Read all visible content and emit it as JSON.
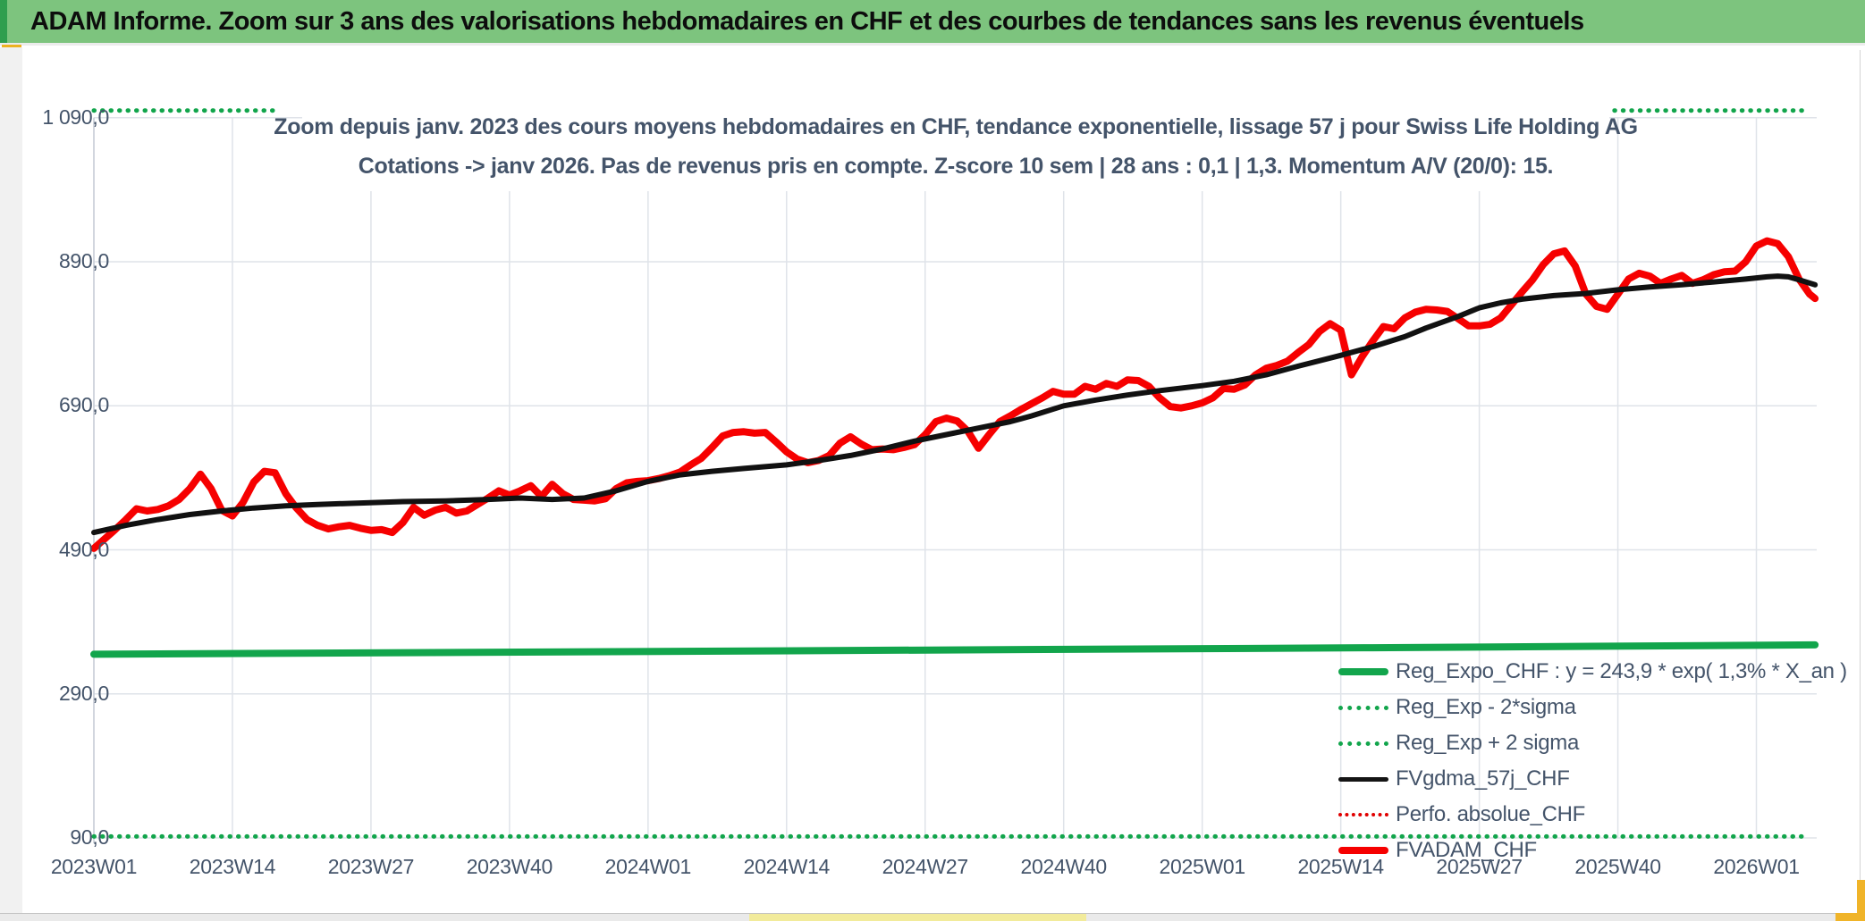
{
  "banner": {
    "title": "ADAM Informe. Zoom sur 3 ans des valorisations hebdomadaires en CHF et des courbes de tendances sans les revenus éventuels",
    "bg_color": "#7dc47e",
    "edge_color": "#2f9e4e",
    "accent_color": "#edb220"
  },
  "chart": {
    "title_line1": "Zoom depuis janv. 2023 des cours moyens hebdomadaires en CHF, tendance exponentielle, lissage 57 j pour Swiss Life Holding AG",
    "title_line2": "Cotations -> janv 2026. Pas de revenus pris en compte. Z-score 10 sem | 28 ans : 0,1 | 1,3. Momentum A/V (20/0): 15.",
    "title_color": "#44546a"
  },
  "chart_data": {
    "type": "line",
    "title": "Zoom depuis janv. 2023 des cours moyens hebdomadaires en CHF, tendance exponentielle, lissage 57 j pour Swiss Life Holding AG Cotations -> janv 2026. Pas de revenus pris en compte. Z-score 10 sem | 28 ans : 0,1 | 1,3. Momentum A/V (20/0): 15.",
    "x_unit": "weeks since 2023W01",
    "x_tick_labels": [
      "2023W01",
      "2023W14",
      "2023W27",
      "2023W40",
      "2024W01",
      "2024W14",
      "2024W27",
      "2024W40",
      "2025W01",
      "2025W14",
      "2025W27",
      "2025W40",
      "2026W01"
    ],
    "x_tick_weeks": [
      0,
      13,
      26,
      39,
      52,
      65,
      78,
      91,
      104,
      117,
      130,
      143,
      156
    ],
    "y_tick_labels": [
      "1 090,0",
      "890,0",
      "690,0",
      "490,0",
      "290,0",
      "90,0"
    ],
    "y_tick_values": [
      1090,
      890,
      690,
      490,
      290,
      90
    ],
    "ylim": [
      90,
      1090
    ],
    "grid": true,
    "gridline_color": "#dfe3e9",
    "series": [
      {
        "name": "FVADAM_CHF",
        "color": "#f60000",
        "style": "solid",
        "width": 8,
        "points": [
          [
            0,
            492
          ],
          [
            1,
            505
          ],
          [
            2,
            518
          ],
          [
            3,
            532
          ],
          [
            4,
            547
          ],
          [
            5,
            544
          ],
          [
            6,
            546
          ],
          [
            7,
            551
          ],
          [
            8,
            560
          ],
          [
            9,
            575
          ],
          [
            10,
            595
          ],
          [
            11,
            575
          ],
          [
            12,
            545
          ],
          [
            13,
            537
          ],
          [
            14,
            556
          ],
          [
            15,
            584
          ],
          [
            16,
            599
          ],
          [
            17,
            597
          ],
          [
            18,
            568
          ],
          [
            19,
            548
          ],
          [
            20,
            532
          ],
          [
            21,
            524
          ],
          [
            22,
            519
          ],
          [
            23,
            522
          ],
          [
            24,
            524
          ],
          [
            25,
            520
          ],
          [
            26,
            517
          ],
          [
            27,
            518
          ],
          [
            28,
            514
          ],
          [
            29,
            528
          ],
          [
            30,
            549
          ],
          [
            31,
            538
          ],
          [
            32,
            545
          ],
          [
            33,
            549
          ],
          [
            34,
            541
          ],
          [
            35,
            544
          ],
          [
            36,
            553
          ],
          [
            37,
            562
          ],
          [
            38,
            572
          ],
          [
            39,
            566
          ],
          [
            40,
            572
          ],
          [
            41,
            579
          ],
          [
            42,
            564
          ],
          [
            43,
            581
          ],
          [
            44,
            568
          ],
          [
            45,
            560
          ],
          [
            46,
            559
          ],
          [
            47,
            558
          ],
          [
            48,
            561
          ],
          [
            49,
            575
          ],
          [
            50,
            583
          ],
          [
            51,
            585
          ],
          [
            52,
            586
          ],
          [
            53,
            589
          ],
          [
            54,
            593
          ],
          [
            55,
            598
          ],
          [
            56,
            608
          ],
          [
            57,
            617
          ],
          [
            58,
            632
          ],
          [
            59,
            648
          ],
          [
            60,
            653
          ],
          [
            61,
            654
          ],
          [
            62,
            652
          ],
          [
            63,
            653
          ],
          [
            64,
            640
          ],
          [
            65,
            626
          ],
          [
            66,
            616
          ],
          [
            67,
            611
          ],
          [
            68,
            614
          ],
          [
            69,
            621
          ],
          [
            70,
            638
          ],
          [
            71,
            647
          ],
          [
            72,
            637
          ],
          [
            73,
            629
          ],
          [
            74,
            630
          ],
          [
            75,
            629
          ],
          [
            76,
            632
          ],
          [
            77,
            636
          ],
          [
            78,
            650
          ],
          [
            79,
            668
          ],
          [
            80,
            673
          ],
          [
            81,
            669
          ],
          [
            82,
            655
          ],
          [
            83,
            631
          ],
          [
            84,
            650
          ],
          [
            85,
            668
          ],
          [
            86,
            676
          ],
          [
            87,
            685
          ],
          [
            88,
            693
          ],
          [
            89,
            701
          ],
          [
            90,
            710
          ],
          [
            91,
            706
          ],
          [
            92,
            706
          ],
          [
            93,
            717
          ],
          [
            94,
            713
          ],
          [
            95,
            721
          ],
          [
            96,
            717
          ],
          [
            97,
            726
          ],
          [
            98,
            725
          ],
          [
            99,
            717
          ],
          [
            100,
            701
          ],
          [
            101,
            689
          ],
          [
            102,
            687
          ],
          [
            103,
            690
          ],
          [
            104,
            694
          ],
          [
            105,
            701
          ],
          [
            106,
            714
          ],
          [
            107,
            713
          ],
          [
            108,
            719
          ],
          [
            109,
            733
          ],
          [
            110,
            742
          ],
          [
            111,
            746
          ],
          [
            112,
            752
          ],
          [
            113,
            764
          ],
          [
            114,
            775
          ],
          [
            115,
            793
          ],
          [
            116,
            804
          ],
          [
            117,
            795
          ],
          [
            118,
            733
          ],
          [
            119,
            758
          ],
          [
            120,
            780
          ],
          [
            121,
            800
          ],
          [
            122,
            797
          ],
          [
            123,
            812
          ],
          [
            124,
            820
          ],
          [
            125,
            824
          ],
          [
            126,
            823
          ],
          [
            127,
            821
          ],
          [
            128,
            811
          ],
          [
            129,
            801
          ],
          [
            130,
            801
          ],
          [
            131,
            803
          ],
          [
            132,
            812
          ],
          [
            133,
            830
          ],
          [
            134,
            848
          ],
          [
            135,
            865
          ],
          [
            136,
            886
          ],
          [
            137,
            901
          ],
          [
            138,
            905
          ],
          [
            139,
            884
          ],
          [
            140,
            845
          ],
          [
            141,
            828
          ],
          [
            142,
            824
          ],
          [
            143,
            845
          ],
          [
            144,
            866
          ],
          [
            145,
            874
          ],
          [
            146,
            870
          ],
          [
            147,
            860
          ],
          [
            148,
            866
          ],
          [
            149,
            871
          ],
          [
            150,
            860
          ],
          [
            151,
            865
          ],
          [
            152,
            872
          ],
          [
            153,
            876
          ],
          [
            154,
            877
          ],
          [
            155,
            890
          ],
          [
            156,
            912
          ],
          [
            157,
            919
          ],
          [
            158,
            915
          ],
          [
            159,
            897
          ],
          [
            160,
            866
          ],
          [
            161,
            845
          ],
          [
            161.5,
            839
          ]
        ]
      },
      {
        "name": "FVgdma_57j_CHF",
        "color": "#111111",
        "style": "solid",
        "width": 6,
        "points": [
          [
            0,
            514
          ],
          [
            3,
            524
          ],
          [
            6,
            532
          ],
          [
            9,
            539
          ],
          [
            12,
            544
          ],
          [
            15,
            548
          ],
          [
            18,
            551
          ],
          [
            21,
            553
          ],
          [
            25,
            555
          ],
          [
            29,
            557
          ],
          [
            33,
            558
          ],
          [
            37,
            560
          ],
          [
            40,
            562
          ],
          [
            43,
            560
          ],
          [
            46,
            562
          ],
          [
            49,
            572
          ],
          [
            52,
            585
          ],
          [
            55,
            594
          ],
          [
            58,
            599
          ],
          [
            61,
            603
          ],
          [
            65,
            608
          ],
          [
            68,
            614
          ],
          [
            71,
            621
          ],
          [
            74,
            630
          ],
          [
            77,
            641
          ],
          [
            80,
            650
          ],
          [
            83,
            659
          ],
          [
            86,
            668
          ],
          [
            88,
            676
          ],
          [
            91,
            690
          ],
          [
            94,
            698
          ],
          [
            97,
            705
          ],
          [
            100,
            711
          ],
          [
            104,
            718
          ],
          [
            107,
            724
          ],
          [
            110,
            733
          ],
          [
            113,
            745
          ],
          [
            117,
            760
          ],
          [
            120,
            772
          ],
          [
            123,
            786
          ],
          [
            125,
            798
          ],
          [
            128,
            814
          ],
          [
            130,
            826
          ],
          [
            132,
            833
          ],
          [
            134,
            838
          ],
          [
            137,
            843
          ],
          [
            140,
            846
          ],
          [
            143,
            851
          ],
          [
            146,
            855
          ],
          [
            149,
            858
          ],
          [
            152,
            862
          ],
          [
            155,
            866
          ],
          [
            157,
            869
          ],
          [
            158,
            870
          ],
          [
            159,
            869
          ],
          [
            160,
            865
          ],
          [
            161.5,
            858
          ]
        ]
      },
      {
        "name": "Reg_Expo_CHF",
        "formula": "y = 243,9 * exp( 1,3% *  X_an )",
        "color": "#12a54c",
        "style": "solid",
        "width": 8,
        "points": [
          [
            0,
            345
          ],
          [
            40,
            348
          ],
          [
            80,
            351
          ],
          [
            120,
            354
          ],
          [
            161.5,
            358
          ]
        ]
      },
      {
        "name": "Reg_Exp + 2 sigma",
        "color": "#12a54c",
        "style": "dotted",
        "width": 5,
        "value": 1100,
        "segments": [
          [
            0,
            17.5
          ],
          [
            139.5,
            160.5
          ]
        ]
      },
      {
        "name": "Reg_Exp - 2*sigma",
        "color": "#12a54c",
        "style": "dotted",
        "width": 5,
        "value": 92,
        "segments": [
          [
            0,
            160.3
          ]
        ]
      }
    ],
    "legend": {
      "position": "inside-bottom-right",
      "items": [
        {
          "label": "Reg_Expo_CHF : y = 243,9 * exp( 1,3% *  X_an )",
          "marker": "solid",
          "color": "#12a54c",
          "thick": 8
        },
        {
          "label": "Reg_Exp - 2*sigma",
          "marker": "dotted",
          "color": "#12a54c",
          "thick": 5
        },
        {
          "label": "Reg_Exp + 2 sigma",
          "marker": "dotted",
          "color": "#12a54c",
          "thick": 5
        },
        {
          "label": "FVgdma_57j_CHF",
          "marker": "solid",
          "color": "#141414",
          "thick": 5
        },
        {
          "label": "Perfo. absolue_CHF",
          "marker": "dotted",
          "color": "#e00000",
          "thick": 4
        },
        {
          "label": "FVADAM_CHF",
          "marker": "solid",
          "color": "#f60000",
          "thick": 8
        }
      ]
    }
  },
  "footer": {
    "strip_color": "#eaeaea",
    "highlight_color": "#f2eb9b",
    "corner_color": "#f0b429"
  }
}
